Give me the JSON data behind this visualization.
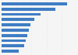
{
  "values": [
    87,
    72,
    52,
    44,
    39,
    36,
    34,
    32,
    30,
    23
  ],
  "bar_color": "#3E7DC4",
  "background_color": "#f5f5f5",
  "plot_bg_color": "#ffffff",
  "xlim": [
    0,
    100
  ],
  "bar_height": 0.55,
  "grid_color": "#cccccc",
  "grid_alpha": 0.5
}
